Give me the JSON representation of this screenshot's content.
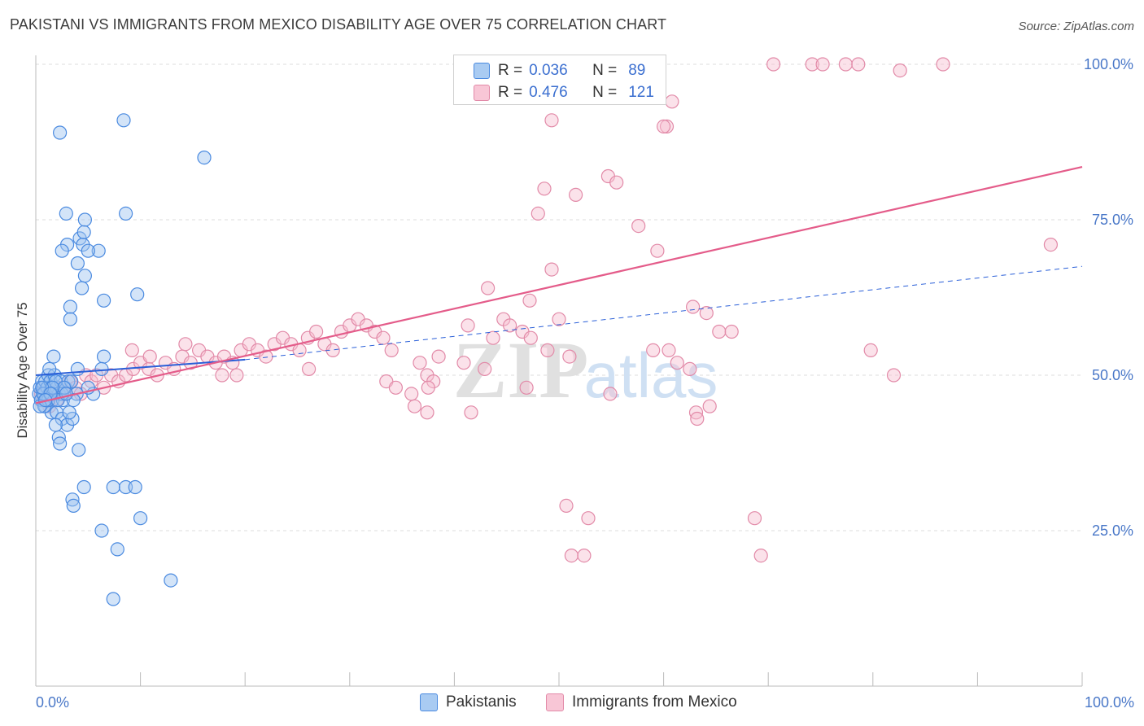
{
  "title": "PAKISTANI VS IMMIGRANTS FROM MEXICO DISABILITY AGE OVER 75 CORRELATION CHART",
  "source": "Source: ZipAtlas.com",
  "watermark": {
    "zip": "ZIP",
    "atlas": "atlas"
  },
  "colors": {
    "pakistani_fill": "#9ec4f0",
    "pakistani_stroke": "#4a8ae0",
    "pakistani_line": "#2a5fd8",
    "mexico_fill": "#f6bfd0",
    "mexico_stroke": "#e28aa8",
    "mexico_line": "#e45c8a",
    "tick_label": "#4a78c8",
    "grid": "#dcdcdc"
  },
  "legend_top": {
    "rows": [
      {
        "r_label": "R =",
        "r_value": "0.036",
        "n_label": "N =",
        "n_value": "89"
      },
      {
        "r_label": "R =",
        "r_value": "0.476",
        "n_label": "N =",
        "n_value": "121"
      }
    ]
  },
  "chart_data": {
    "type": "scatter",
    "title": "PAKISTANI VS IMMIGRANTS FROM MEXICO DISABILITY AGE OVER 75 CORRELATION CHART",
    "xlabel": "",
    "ylabel": "Disability Age Over 75",
    "xlim": [
      0,
      100
    ],
    "ylim": [
      0,
      105
    ],
    "x_tick_labels": [
      "0.0%",
      "100.0%"
    ],
    "y_ticks": [
      25,
      50,
      75,
      100
    ],
    "y_tick_labels": [
      "25.0%",
      "50.0%",
      "75.0%",
      "100.0%"
    ],
    "grid": true,
    "legend_position": "bottom",
    "series": [
      {
        "name": "Pakistanis",
        "trend": {
          "x": [
            0,
            20,
            100
          ],
          "y": [
            50.0,
            52.5,
            67.5
          ],
          "solid_until": 20
        },
        "points": [
          [
            0.3,
            47
          ],
          [
            0.4,
            48
          ],
          [
            0.5,
            46
          ],
          [
            0.6,
            49
          ],
          [
            0.7,
            48
          ],
          [
            0.8,
            47
          ],
          [
            0.9,
            49
          ],
          [
            1.0,
            46
          ],
          [
            1.1,
            48
          ],
          [
            1.2,
            50
          ],
          [
            1.3,
            47
          ],
          [
            1.4,
            49
          ],
          [
            1.5,
            48
          ],
          [
            1.6,
            46
          ],
          [
            1.8,
            50
          ],
          [
            2.0,
            48
          ],
          [
            2.2,
            47
          ],
          [
            2.4,
            49
          ],
          [
            2.6,
            46
          ],
          [
            2.8,
            48
          ],
          [
            0.5,
            46
          ],
          [
            0.9,
            45
          ],
          [
            1.3,
            51
          ],
          [
            1.7,
            53
          ],
          [
            1.5,
            44
          ],
          [
            2.0,
            44
          ],
          [
            2.5,
            43
          ],
          [
            3.0,
            42
          ],
          [
            3.5,
            43
          ],
          [
            2.2,
            40
          ],
          [
            2.3,
            39
          ],
          [
            4.1,
            38
          ],
          [
            5.5,
            47
          ],
          [
            4.0,
            51
          ],
          [
            6.5,
            53
          ],
          [
            6.3,
            51
          ],
          [
            2.5,
            47
          ],
          [
            3.1,
            49
          ],
          [
            3.9,
            47
          ],
          [
            1.9,
            42
          ],
          [
            3.2,
            44
          ],
          [
            3.4,
            49
          ],
          [
            2.3,
            89
          ],
          [
            8.4,
            91
          ],
          [
            16.1,
            85
          ],
          [
            2.9,
            76
          ],
          [
            4.7,
            75
          ],
          [
            8.6,
            76
          ],
          [
            3.0,
            71
          ],
          [
            4.2,
            72
          ],
          [
            4.5,
            71
          ],
          [
            4.6,
            73
          ],
          [
            6.0,
            70
          ],
          [
            2.5,
            70
          ],
          [
            5.0,
            70
          ],
          [
            4.0,
            68
          ],
          [
            4.7,
            66
          ],
          [
            4.4,
            64
          ],
          [
            3.3,
            61
          ],
          [
            3.3,
            59
          ],
          [
            6.5,
            62
          ],
          [
            9.7,
            63
          ],
          [
            3.5,
            30
          ],
          [
            3.6,
            29
          ],
          [
            4.6,
            32
          ],
          [
            7.4,
            32
          ],
          [
            8.6,
            32
          ],
          [
            9.5,
            32
          ],
          [
            10.0,
            27
          ],
          [
            6.3,
            25
          ],
          [
            7.8,
            22
          ],
          [
            12.9,
            17
          ],
          [
            7.4,
            14
          ],
          [
            1.0,
            46
          ],
          [
            1.5,
            47
          ],
          [
            0.8,
            45
          ],
          [
            1.9,
            49
          ],
          [
            2.7,
            48
          ],
          [
            3.6,
            46
          ],
          [
            5.0,
            48
          ],
          [
            1.2,
            46
          ],
          [
            0.7,
            47
          ],
          [
            1.6,
            48
          ],
          [
            2.1,
            46
          ],
          [
            0.4,
            45
          ],
          [
            0.6,
            48
          ],
          [
            1.4,
            47
          ],
          [
            2.9,
            47
          ],
          [
            0.9,
            46
          ]
        ]
      },
      {
        "name": "Immigrants from Mexico",
        "trend": {
          "x": [
            0,
            100
          ],
          "y": [
            45.5,
            83.5
          ]
        },
        "points": [
          [
            0.5,
            47
          ],
          [
            0.8,
            46
          ],
          [
            1.0,
            48
          ],
          [
            1.3,
            45
          ],
          [
            1.6,
            47
          ],
          [
            2.0,
            46
          ],
          [
            2.4,
            48
          ],
          [
            2.8,
            47
          ],
          [
            3.3,
            49
          ],
          [
            3.8,
            48
          ],
          [
            4.3,
            47
          ],
          [
            4.8,
            50
          ],
          [
            5.3,
            49
          ],
          [
            5.8,
            50
          ],
          [
            6.5,
            48
          ],
          [
            7.2,
            50
          ],
          [
            7.9,
            49
          ],
          [
            8.6,
            50
          ],
          [
            9.3,
            51
          ],
          [
            10.0,
            52
          ],
          [
            10.8,
            51
          ],
          [
            11.6,
            50
          ],
          [
            12.4,
            52
          ],
          [
            13.2,
            51
          ],
          [
            14.0,
            53
          ],
          [
            14.8,
            52
          ],
          [
            15.6,
            54
          ],
          [
            16.4,
            53
          ],
          [
            17.2,
            52
          ],
          [
            18.0,
            53
          ],
          [
            18.8,
            52
          ],
          [
            19.6,
            54
          ],
          [
            20.4,
            55
          ],
          [
            21.2,
            54
          ],
          [
            22.0,
            53
          ],
          [
            22.8,
            55
          ],
          [
            23.6,
            56
          ],
          [
            24.4,
            55
          ],
          [
            25.2,
            54
          ],
          [
            26.0,
            56
          ],
          [
            26.8,
            57
          ],
          [
            27.6,
            55
          ],
          [
            28.4,
            54
          ],
          [
            29.2,
            57
          ],
          [
            30.0,
            58
          ],
          [
            30.8,
            59
          ],
          [
            31.6,
            58
          ],
          [
            32.4,
            57
          ],
          [
            33.2,
            56
          ],
          [
            34.0,
            54
          ],
          [
            9.2,
            54
          ],
          [
            10.9,
            53
          ],
          [
            14.3,
            55
          ],
          [
            17.8,
            50
          ],
          [
            19.2,
            50
          ],
          [
            26.1,
            51
          ],
          [
            33.5,
            49
          ],
          [
            34.4,
            48
          ],
          [
            35.9,
            47
          ],
          [
            36.7,
            52
          ],
          [
            37.4,
            50
          ],
          [
            38.0,
            49
          ],
          [
            37.4,
            44
          ],
          [
            36.2,
            45
          ],
          [
            37.5,
            48
          ],
          [
            41.6,
            44
          ],
          [
            46.9,
            48
          ],
          [
            44.7,
            59
          ],
          [
            48.9,
            54
          ],
          [
            54.9,
            47
          ],
          [
            41.3,
            58
          ],
          [
            43.7,
            56
          ],
          [
            46.5,
            57
          ],
          [
            38.5,
            53
          ],
          [
            40.9,
            52
          ],
          [
            42.9,
            51
          ],
          [
            45.3,
            58
          ],
          [
            47.3,
            56
          ],
          [
            50.0,
            59
          ],
          [
            51.0,
            53
          ],
          [
            47.2,
            62
          ],
          [
            49.3,
            67
          ],
          [
            43.2,
            64
          ],
          [
            48.0,
            76
          ],
          [
            51.6,
            79
          ],
          [
            54.7,
            82
          ],
          [
            55.5,
            81
          ],
          [
            57.6,
            74
          ],
          [
            59.4,
            70
          ],
          [
            59.0,
            54
          ],
          [
            60.5,
            54
          ],
          [
            61.3,
            52
          ],
          [
            62.5,
            51
          ],
          [
            63.1,
            44
          ],
          [
            64.4,
            45
          ],
          [
            65.3,
            57
          ],
          [
            66.5,
            57
          ],
          [
            60.3,
            90
          ],
          [
            60.8,
            94
          ],
          [
            60.0,
            90
          ],
          [
            62.8,
            61
          ],
          [
            64.1,
            60
          ],
          [
            48.6,
            80
          ],
          [
            49.3,
            91
          ],
          [
            51.2,
            21
          ],
          [
            52.4,
            21
          ],
          [
            50.7,
            29
          ],
          [
            52.8,
            27
          ],
          [
            63.2,
            43
          ],
          [
            68.7,
            27
          ],
          [
            69.3,
            21
          ],
          [
            74.2,
            100
          ],
          [
            75.2,
            100
          ],
          [
            77.4,
            100
          ],
          [
            82.6,
            99
          ],
          [
            86.7,
            100
          ],
          [
            70.5,
            100
          ],
          [
            78.6,
            100
          ],
          [
            97.0,
            71
          ],
          [
            82.0,
            50
          ],
          [
            79.8,
            54
          ]
        ]
      }
    ]
  },
  "axes": {
    "ylabel": "Disability Age Over 75",
    "x_left_label": "0.0%",
    "x_right_label": "100.0%"
  },
  "bottom_legend": {
    "items": [
      {
        "label": "Pakistanis"
      },
      {
        "label": "Immigrants from Mexico"
      }
    ]
  }
}
